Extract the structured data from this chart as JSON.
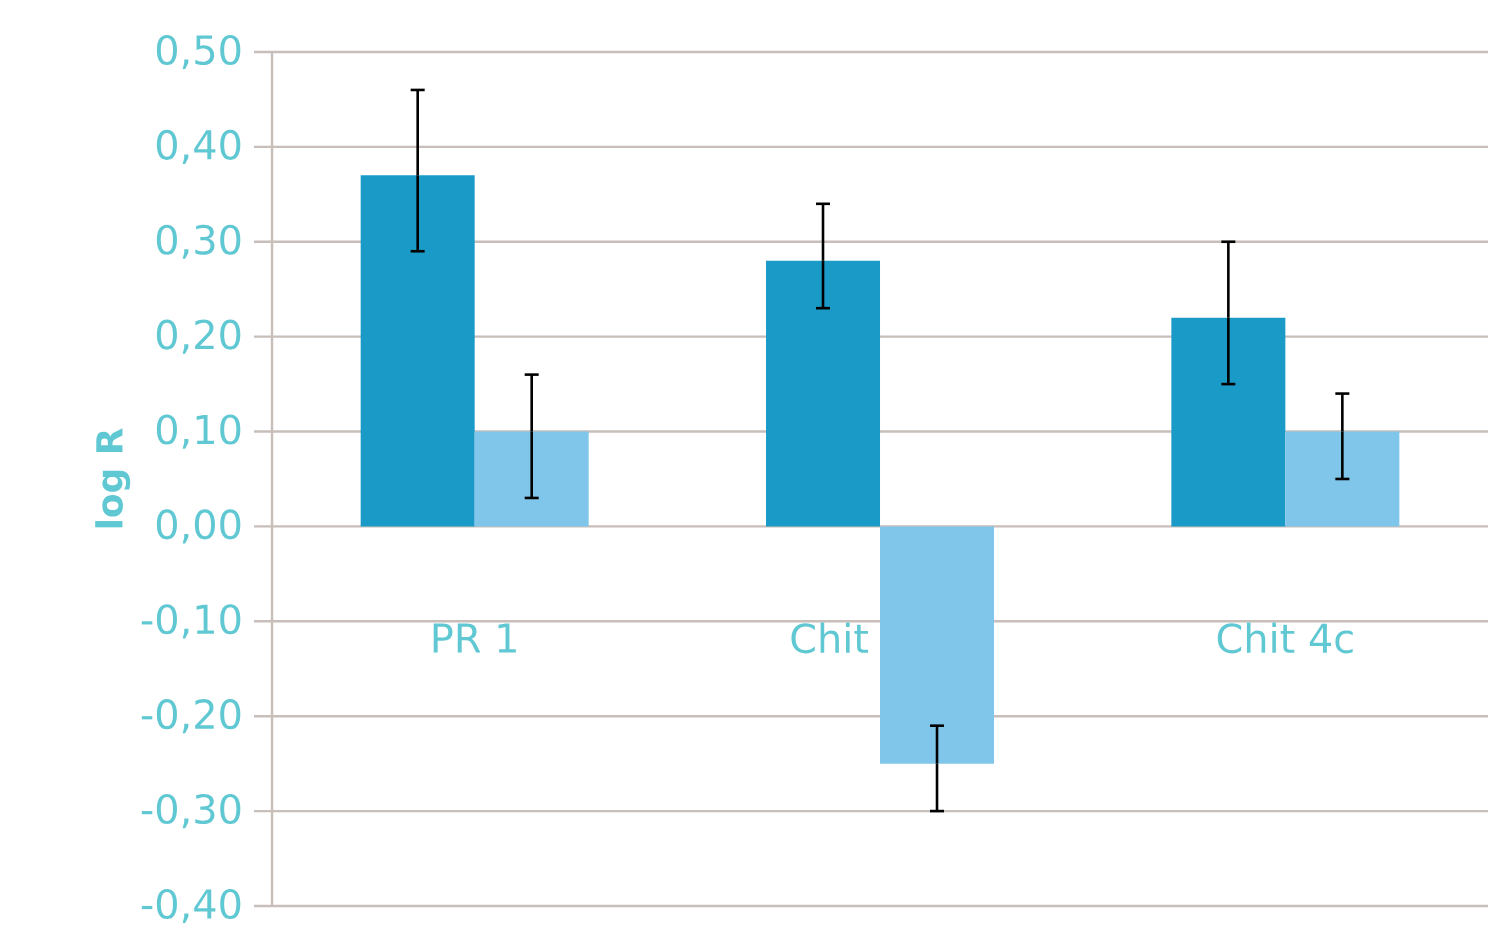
{
  "chart_data": {
    "type": "bar",
    "ylabel": "log R",
    "categories": [
      "PR 1",
      "Chit",
      "Chit 4c"
    ],
    "series": [
      {
        "color": "#1a9bc7",
        "values": [
          0.37,
          0.28,
          0.22
        ],
        "errors": [
          [
            0.29,
            0.46
          ],
          [
            0.23,
            0.34
          ],
          [
            0.15,
            0.3
          ]
        ]
      },
      {
        "color": "#80c6ea",
        "values": [
          0.1,
          -0.25,
          0.1
        ],
        "errors": [
          [
            0.03,
            0.16
          ],
          [
            -0.3,
            -0.21
          ],
          [
            0.05,
            0.14
          ]
        ]
      }
    ],
    "ylim": [
      -0.4,
      0.5
    ],
    "yticks": [
      {
        "value": -0.4,
        "label": "-0,40"
      },
      {
        "value": -0.3,
        "label": "-0,30"
      },
      {
        "value": -0.2,
        "label": "-0,20"
      },
      {
        "value": -0.1,
        "label": "-0,10"
      },
      {
        "value": 0,
        "label": "0,00"
      },
      {
        "value": 0.1,
        "label": "0,10"
      },
      {
        "value": 0.2,
        "label": "0,20"
      },
      {
        "value": 0.3,
        "label": "0,30"
      },
      {
        "value": 0.4,
        "label": "0,40"
      },
      {
        "value": 0.5,
        "label": "0,50"
      }
    ],
    "grid": "y"
  }
}
